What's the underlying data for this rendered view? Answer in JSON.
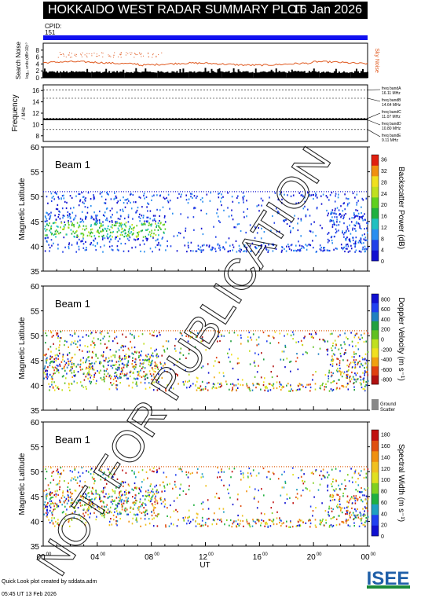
{
  "header": {
    "title": "HOKKAIDO WEST RADAR SUMMARY PLOT",
    "date": "16 Jan 2026",
    "cpid_label": "CPID:",
    "cpid_value": "151"
  },
  "colors": {
    "cpid_bar": "#1010f0",
    "noise_sky": "#e05a20",
    "noise_search": "#000000",
    "watermark": "#000000"
  },
  "noise_panel": {
    "ylabel": "Search Noise",
    "ylabel_sub": "log₁₀ units (dB×10)¹⁰",
    "yticks": [
      "0",
      "2",
      "4",
      "6",
      "8"
    ],
    "right_label": "Sky Noise"
  },
  "freq_panel": {
    "ylabel": "Frequency",
    "ylabel_unit": "/ MHz",
    "yticks": [
      "8",
      "10",
      "12",
      "14",
      "16"
    ],
    "bands": [
      {
        "name": "freq bandA",
        "value": "16.11 MHz"
      },
      {
        "name": "freq bandB",
        "value": "14.64 MHz"
      },
      {
        "name": "freq bandC",
        "value": "11.07 MHz"
      },
      {
        "name": "freq bandD",
        "value": "10.80 MHz"
      },
      {
        "name": "freq bandE",
        "value": "9.11 MHz"
      }
    ]
  },
  "panels": [
    {
      "beam": "Beam  1",
      "ylabel": "Magnetic Latitude",
      "cbar_label": "Backscatter Power (dB)",
      "cbar_ticks": [
        "0",
        "4",
        "8",
        "12",
        "16",
        "20",
        "24",
        "28",
        "32",
        "36"
      ]
    },
    {
      "beam": "Beam  1",
      "ylabel": "Magnetic Latitude",
      "cbar_label": "Doppler Velocity (m s⁻¹)",
      "cbar_ticks": [
        "800",
        "600",
        "400",
        "200",
        "0",
        "-200",
        "-400",
        "-600",
        "-800"
      ],
      "ground_label": "Ground",
      "ground_label2": "Scatter"
    },
    {
      "beam": "Beam  1",
      "ylabel": "Magnetic Latitude",
      "cbar_label": "Spectral Width (m s⁻¹)",
      "cbar_ticks": [
        "0",
        "20",
        "40",
        "60",
        "80",
        "100",
        "120",
        "140",
        "160",
        "180"
      ]
    }
  ],
  "chart_data": {
    "type": "heatmap",
    "title": "HOKKAIDO WEST RADAR SUMMARY PLOT",
    "xlabel": "UT",
    "ylabel": "Magnetic Latitude",
    "x_ticks": [
      "00",
      "04",
      "08",
      "12",
      "16",
      "20",
      "00"
    ],
    "x_tick_sup": "00",
    "xlim": [
      0,
      24
    ],
    "ylim": [
      35,
      60
    ],
    "y_ticks": [
      35,
      40,
      45,
      50,
      55,
      60
    ],
    "panels": [
      "Backscatter Power (dB)",
      "Doppler Velocity (m s⁻¹)",
      "Spectral Width (m s⁻¹)"
    ],
    "search_noise_ylim": [
      0,
      10
    ],
    "frequency_ylim": [
      7,
      17
    ],
    "frequency_band_lines_mhz": [
      16.11,
      14.64,
      11.07,
      10.8,
      9.11
    ],
    "scatter_extent_lat": [
      39,
      51
    ],
    "scatter_upper_edge_lat": 51
  },
  "footer": {
    "line1": "Quick Look plot created by sddata.adm",
    "line2": "05:45 UT 13 Feb 2026",
    "logo": "ISEE"
  },
  "watermark": "NOT FOR PUBLICATION"
}
